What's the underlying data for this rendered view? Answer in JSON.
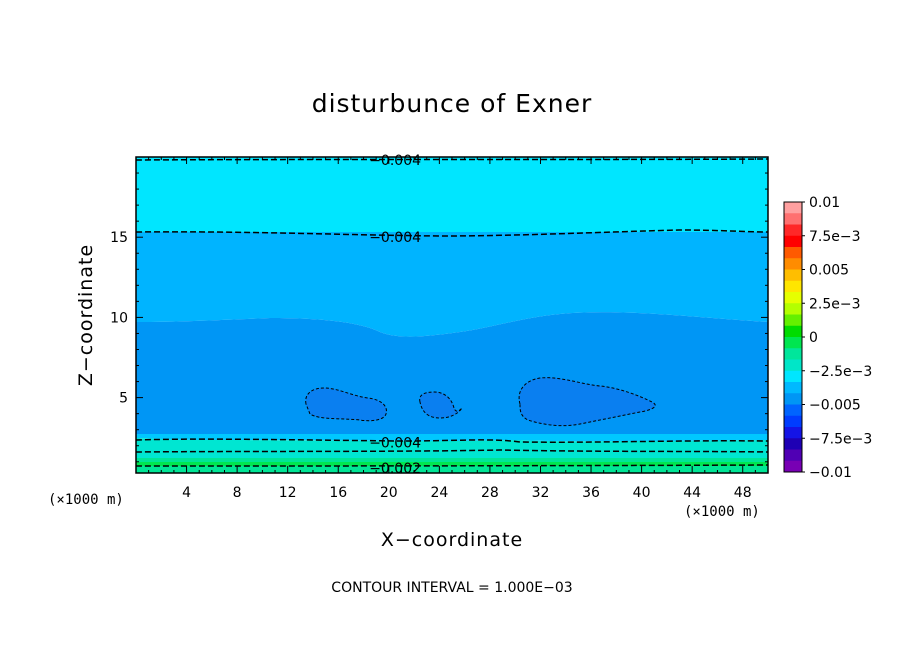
{
  "chart_data": {
    "type": "contour",
    "title": "disturbunce of Exner",
    "xlabel": "X−coordinate",
    "ylabel": "Z−coordinate",
    "x_unit_label": "(×1000 m)",
    "y_unit_label": "(×1000 m)",
    "xlim": [
      0,
      50
    ],
    "ylim": [
      0.3,
      20
    ],
    "x_ticks": [
      4,
      8,
      12,
      16,
      20,
      24,
      28,
      32,
      36,
      40,
      44,
      48
    ],
    "x_tick_labels": [
      "4",
      "8",
      "12",
      "16",
      "20",
      "24",
      "28",
      "32",
      "36",
      "40",
      "44",
      "48"
    ],
    "y_ticks": [
      5,
      10,
      15
    ],
    "y_tick_labels": [
      "5",
      "10",
      "15"
    ],
    "contour_interval_text": "CONTOUR INTERVAL = 1.000E−03",
    "contour_labels": [
      {
        "text": "−0.004",
        "x": 20.5,
        "z": 19.8
      },
      {
        "text": "−0.004",
        "x": 20.5,
        "z": 15.0
      },
      {
        "text": "−0.004",
        "x": 20.5,
        "z": 2.2
      },
      {
        "text": "−0.002",
        "x": 20.5,
        "z": 0.6
      }
    ],
    "fill_bands": [
      {
        "range": "-0.004 to -0.003",
        "color": "#00e6ff",
        "z_from": 15.2,
        "z_to": 20
      },
      {
        "range": "-0.005 to -0.004",
        "color": "#00b4ff",
        "z_from": 9.5,
        "z_to": 15.2
      },
      {
        "range": "-0.006 to -0.005",
        "color": "#0096f5",
        "z_from": 2.8,
        "z_to": 9.5
      },
      {
        "range": "-0.004 to -0.003",
        "color": "#00c8ff",
        "z_from": 2.2,
        "z_to": 2.8
      },
      {
        "range": "-0.003 to -0.002",
        "color": "#00e6d2",
        "z_from": 1.2,
        "z_to": 2.2
      },
      {
        "range": "-0.002 to -0.001",
        "color": "#00e696",
        "z_from": 0.3,
        "z_to": 1.2
      }
    ],
    "colorbar": {
      "min": -0.01,
      "max": 0.01,
      "tick_labels": [
        "0.01",
        "7.5e−3",
        "0.005",
        "2.5e−3",
        "0",
        "−2.5e−3",
        "−0.005",
        "−7.5e−3",
        "−0.01"
      ],
      "colors_top_to_bottom": [
        "#ffa0a0",
        "#ff7070",
        "#ff2828",
        "#ff0000",
        "#ff5a00",
        "#ff8c00",
        "#ffbe00",
        "#ffe600",
        "#e6ff00",
        "#b4ff00",
        "#64f000",
        "#00dc00",
        "#00e650",
        "#00e69b",
        "#00e6c8",
        "#00e6ff",
        "#00b9ff",
        "#0096f5",
        "#0064ff",
        "#003cff",
        "#1414e6",
        "#1e00b4",
        "#5000b4",
        "#7800b4"
      ]
    }
  }
}
